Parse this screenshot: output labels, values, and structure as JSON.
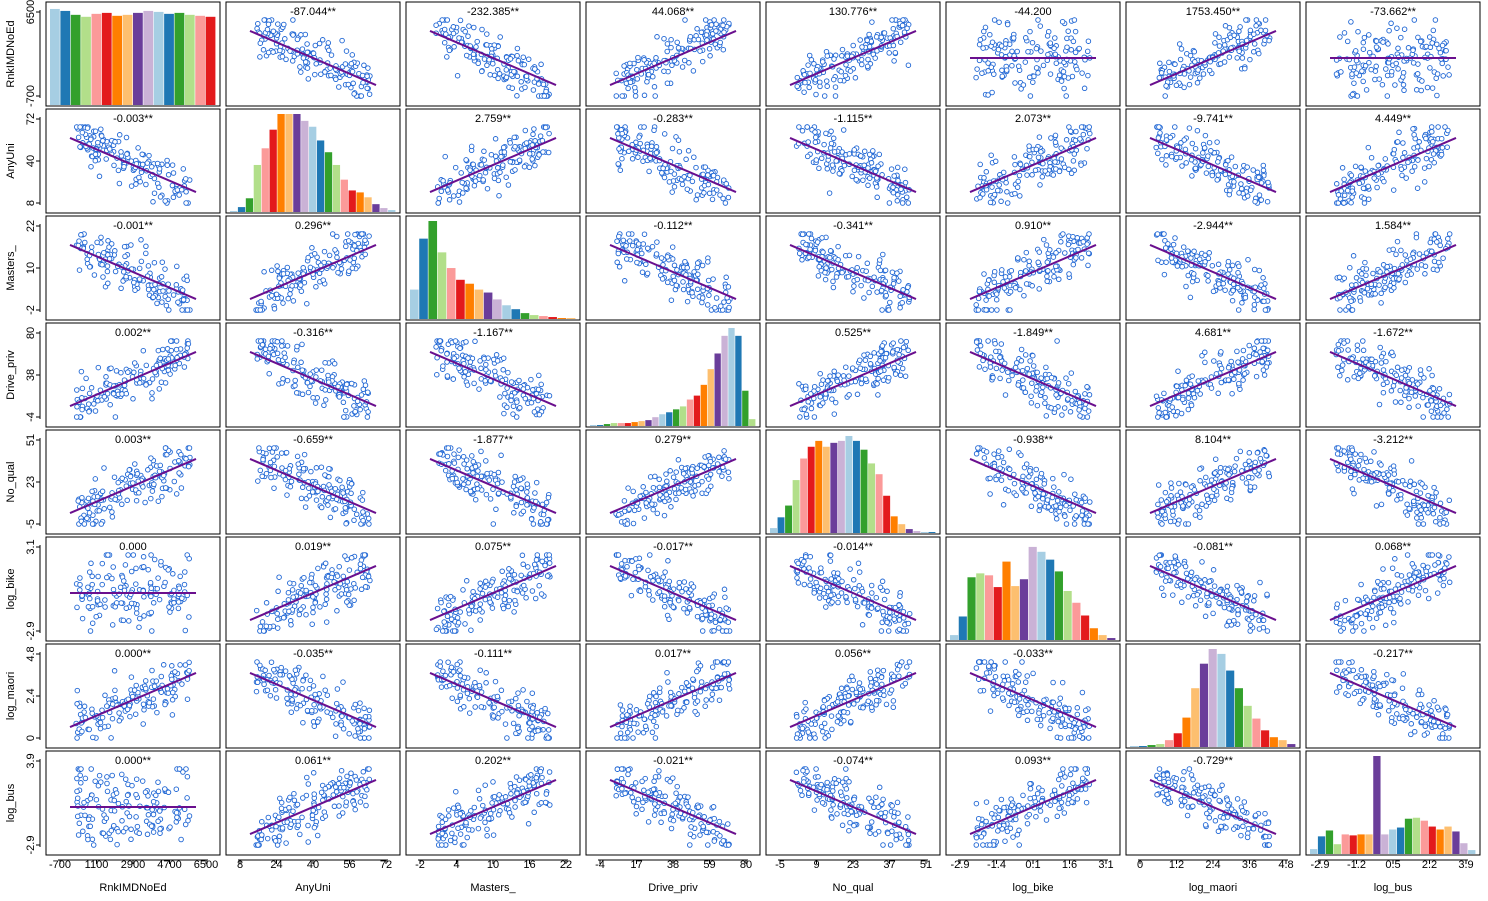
{
  "chart_data": {
    "type": "scatter",
    "subtype": "pairs-matrix",
    "variables": [
      "RnkIMDNoEd",
      "AnyUni",
      "Masters_",
      "Drive_priv",
      "No_qual",
      "log_bike",
      "log_maori",
      "log_bus"
    ],
    "y_axis": {
      "row_labels": [
        "RnkIMDNoEd",
        "AnyUni",
        "Masters_",
        "Drive_priv",
        "No_qual",
        "log_bike",
        "log_maori",
        "log_bus"
      ],
      "tick_labels": [
        [
          "6500",
          "-700"
        ],
        [
          "72",
          "40",
          "8"
        ],
        [
          "22",
          "10",
          "-2"
        ],
        [
          "80",
          "38",
          "-4"
        ],
        [
          "51",
          "23",
          "-5"
        ],
        [
          "3.1",
          "-2.9"
        ],
        [
          "4.8",
          "2.4",
          "0"
        ],
        [
          "3.9",
          "-2.9"
        ]
      ]
    },
    "x_axis": {
      "column_labels": [
        "RnkIMDNoEd",
        "AnyUni",
        "Masters_",
        "Drive_priv",
        "No_qual",
        "log_bike",
        "log_maori",
        "log_bus"
      ],
      "tick_labels": [
        [
          "-700",
          "1100",
          "2900",
          "4700",
          "6500"
        ],
        [
          "8",
          "24",
          "40",
          "56",
          "72"
        ],
        [
          "-2",
          "4",
          "10",
          "16",
          "22"
        ],
        [
          "-4",
          "17",
          "38",
          "59",
          "80"
        ],
        [
          "-5",
          "9",
          "23",
          "37",
          "51"
        ],
        [
          "-2.9",
          "-1.4",
          "0.1",
          "1.6",
          "3.1"
        ],
        [
          "0",
          "1.2",
          "2.4",
          "3.6",
          "4.8"
        ],
        [
          "-2.9",
          "-1.2",
          "0.5",
          "2.2",
          "3.9"
        ]
      ]
    },
    "slope_labels": [
      [
        null,
        "-87.044**",
        "-232.385**",
        "44.068**",
        "130.776**",
        "-44.200",
        "1753.450**",
        "-73.662**"
      ],
      [
        "-0.003**",
        null,
        "2.759**",
        "-0.283**",
        "-1.115**",
        "2.073**",
        "-9.741**",
        "4.449**"
      ],
      [
        "-0.001**",
        "0.296**",
        null,
        "-0.112**",
        "-0.341**",
        "0.910**",
        "-2.944**",
        "1.584**"
      ],
      [
        "0.002**",
        "-0.316**",
        "-1.167**",
        null,
        "0.525**",
        "-1.849**",
        "4.681**",
        "-1.672**"
      ],
      [
        "0.003**",
        "-0.659**",
        "-1.877**",
        "0.279**",
        null,
        "-0.938**",
        "8.104**",
        "-3.212**"
      ],
      [
        "0.000",
        "0.019**",
        "0.075**",
        "-0.017**",
        "-0.014**",
        null,
        "-0.081**",
        "0.068**"
      ],
      [
        "0.000**",
        "-0.035**",
        "-0.111**",
        "0.017**",
        "0.056**",
        "-0.033**",
        null,
        "-0.217**"
      ],
      [
        "0.000**",
        "0.061**",
        "0.202**",
        "-0.021**",
        "-0.074**",
        "0.093**",
        "-0.729**",
        null
      ]
    ],
    "fit_line_slope_sign": [
      [
        0,
        -1,
        -1,
        1,
        1,
        0,
        1,
        0
      ],
      [
        -1,
        0,
        1,
        -1,
        -1,
        1,
        -1,
        1
      ],
      [
        -1,
        1,
        0,
        -1,
        -1,
        1,
        -1,
        1
      ],
      [
        1,
        -1,
        -1,
        0,
        1,
        -1,
        1,
        -1
      ],
      [
        1,
        -1,
        -1,
        1,
        0,
        -1,
        1,
        -1
      ],
      [
        0,
        1,
        1,
        -1,
        -1,
        0,
        -1,
        1
      ],
      [
        1,
        -1,
        -1,
        1,
        1,
        -1,
        0,
        -1
      ],
      [
        0,
        1,
        1,
        -1,
        -1,
        1,
        -1,
        0
      ]
    ],
    "histograms": [
      [
        0.98,
        0.96,
        0.92,
        0.9,
        0.93,
        0.94,
        0.91,
        0.92,
        0.94,
        0.96,
        0.95,
        0.93,
        0.94,
        0.92,
        0.91,
        0.9
      ],
      [
        0.01,
        0.05,
        0.14,
        0.48,
        0.65,
        0.84,
        1.0,
        1.06,
        1.02,
        0.93,
        0.87,
        0.73,
        0.61,
        0.48,
        0.33,
        0.22,
        0.2,
        0.15,
        0.08,
        0.04,
        0.02
      ],
      [
        0.3,
        0.82,
        1.0,
        0.68,
        0.52,
        0.4,
        0.36,
        0.3,
        0.27,
        0.2,
        0.14,
        0.1,
        0.06,
        0.04,
        0.03,
        0.02,
        0.01,
        0.01
      ],
      [
        0.01,
        0.01,
        0.02,
        0.03,
        0.03,
        0.03,
        0.04,
        0.05,
        0.06,
        0.09,
        0.12,
        0.14,
        0.17,
        0.2,
        0.27,
        0.31,
        0.42,
        0.58,
        0.74,
        0.92,
        1.0,
        0.92,
        0.36,
        0.07
      ],
      [
        0.05,
        0.16,
        0.28,
        0.54,
        0.76,
        0.88,
        0.94,
        0.88,
        0.92,
        0.94,
        0.99,
        0.94,
        0.85,
        0.71,
        0.6,
        0.38,
        0.17,
        0.09,
        0.04,
        0.02,
        0.01,
        0.01
      ],
      [
        0.05,
        0.24,
        0.64,
        0.68,
        0.66,
        0.54,
        0.8,
        0.55,
        0.62,
        0.95,
        0.9,
        0.82,
        0.7,
        0.5,
        0.38,
        0.25,
        0.12,
        0.05,
        0.02
      ],
      [
        0.01,
        0.01,
        0.02,
        0.03,
        0.07,
        0.14,
        0.3,
        0.6,
        0.85,
        1.0,
        0.95,
        0.78,
        0.6,
        0.42,
        0.29,
        0.17,
        0.1,
        0.07,
        0.03
      ],
      [
        0.05,
        0.18,
        0.24,
        0.1,
        0.2,
        0.19,
        0.2,
        0.2,
        1.0,
        0.2,
        0.25,
        0.27,
        0.36,
        0.37,
        0.34,
        0.28,
        0.25,
        0.28,
        0.23,
        0.11,
        0.04
      ]
    ],
    "colors": {
      "points": "#1f66d4",
      "fit_line": "#6a0f8e",
      "text": "#000000",
      "frame": "#000000",
      "bar_palette": [
        "#a6cee3",
        "#1f78b4",
        "#33a02c",
        "#b2df8a",
        "#fb9a99",
        "#e31a1c",
        "#ff7f00",
        "#fdbf6f",
        "#6a3d9a",
        "#cab2d6"
      ]
    },
    "significance_marker": "**"
  }
}
